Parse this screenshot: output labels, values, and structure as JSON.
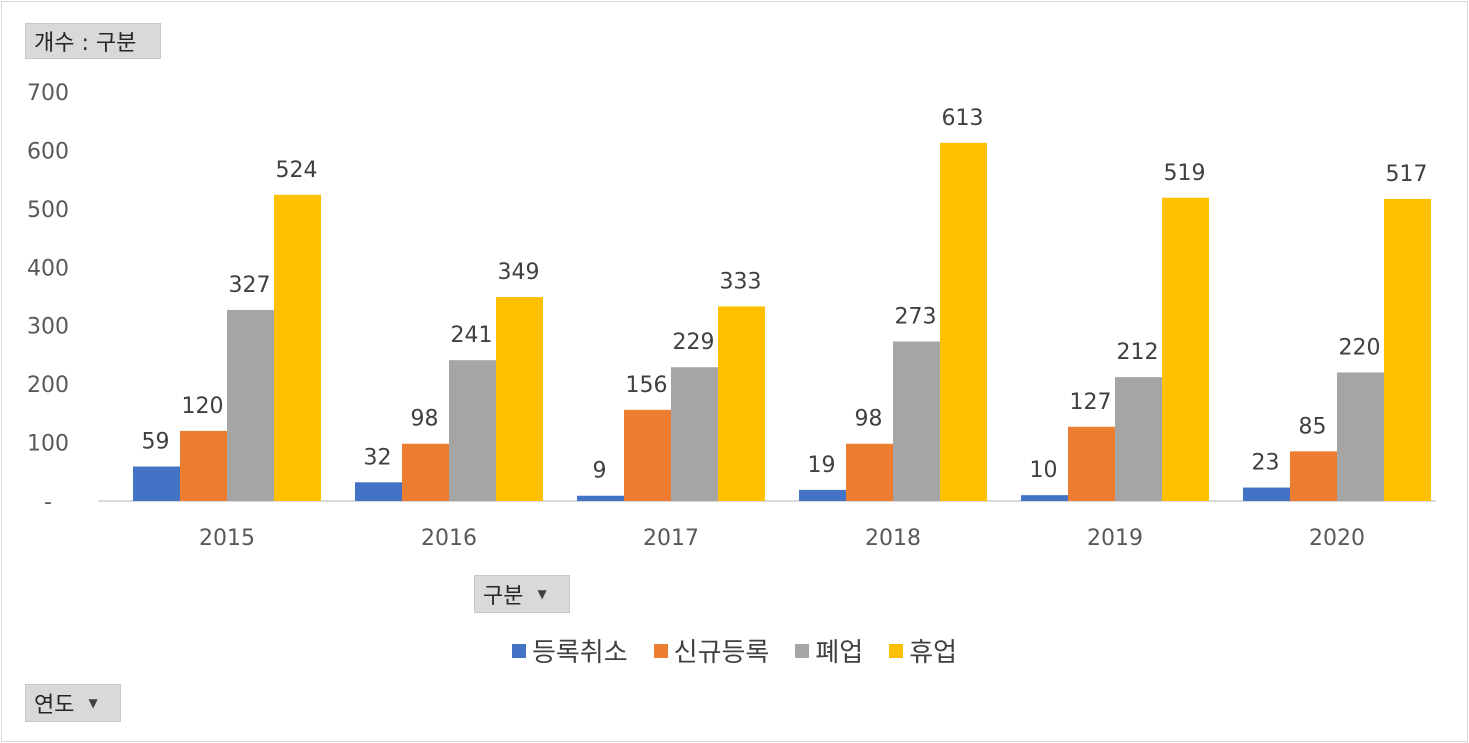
{
  "pivot": {
    "value_field": "개수 : 구분",
    "column_field": "구분",
    "row_field": "연도"
  },
  "chart_data": {
    "type": "bar",
    "categories": [
      "2015",
      "2016",
      "2017",
      "2018",
      "2019",
      "2020"
    ],
    "series": [
      {
        "name": "등록취소",
        "color": "#4472C4",
        "values": [
          59,
          32,
          9,
          19,
          10,
          23
        ]
      },
      {
        "name": "신규등록",
        "color": "#ED7D31",
        "values": [
          120,
          98,
          156,
          98,
          127,
          85
        ]
      },
      {
        "name": "폐업",
        "color": "#A5A5A5",
        "values": [
          327,
          241,
          229,
          273,
          212,
          220
        ]
      },
      {
        "name": "휴업",
        "color": "#FFC000",
        "values": [
          524,
          349,
          333,
          613,
          519,
          517
        ]
      }
    ],
    "ylim": [
      0,
      700
    ],
    "yticks": [
      "-",
      "100",
      "200",
      "300",
      "400",
      "500",
      "600",
      "700"
    ],
    "legend": "bottom",
    "grid": false
  }
}
